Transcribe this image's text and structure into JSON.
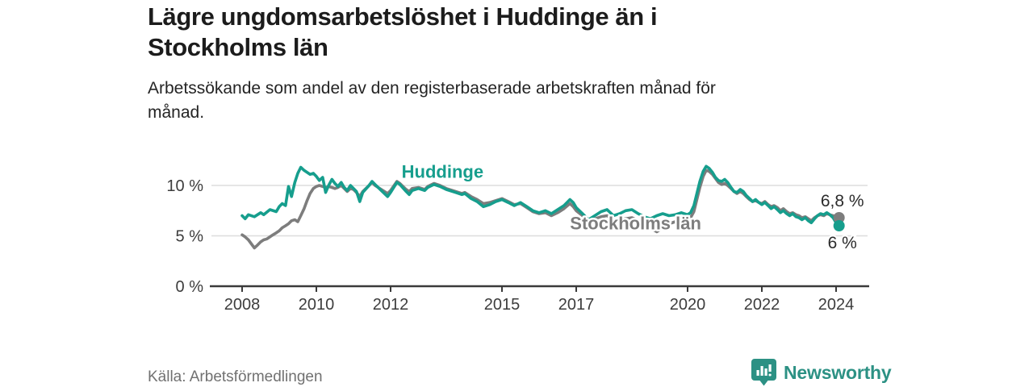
{
  "header": {
    "title_lines": [
      "Lägre ungdomsarbetslöshet i Huddinge än i",
      "Stockholms län"
    ],
    "subtitle_lines": [
      "Arbetssökande som andel av den registerbaserade arbetskraften månad för",
      "månad."
    ]
  },
  "footer": {
    "source": "Källa: Arbetsförmedlingen",
    "brand": "Newsworthy"
  },
  "colors": {
    "huddinge": "#169e8d",
    "stockholm": "#7d7d7d",
    "grid": "#dddddd",
    "axis": "#3a3a3a",
    "tick_label": "#3d3d3d",
    "end_label": "#2b2b2b",
    "brand": "#2c9184",
    "background": "#ffffff"
  },
  "chart_data": {
    "type": "line",
    "title": "Lägre ungdomsarbetslöshet i Huddinge än i Stockholms län",
    "xlabel": "",
    "ylabel": "Arbetssökande som andel av den registerbaserade arbetskraften",
    "x_ticks": [
      2008,
      2010,
      2012,
      2015,
      2017,
      2020,
      2022,
      2024
    ],
    "y_ticks": [
      {
        "value": 0,
        "label": "0 %"
      },
      {
        "value": 5,
        "label": "5 %"
      },
      {
        "value": 10,
        "label": "10 %"
      }
    ],
    "xlim": [
      2007.1,
      2024.9
    ],
    "ylim": [
      0,
      14
    ],
    "grid": "horizontal",
    "legend_position": "inline-labels",
    "series": [
      {
        "name": "Stockholms län",
        "color": "#7d7d7d",
        "end_label": "6,8 %",
        "end_value": 6.8,
        "label_anchor": {
          "year": 2018.6,
          "pct": 5.65
        },
        "points": [
          [
            2008.0,
            5.1
          ],
          [
            2008.08,
            4.9
          ],
          [
            2008.17,
            4.6
          ],
          [
            2008.25,
            4.2
          ],
          [
            2008.33,
            3.8
          ],
          [
            2008.42,
            4.1
          ],
          [
            2008.5,
            4.4
          ],
          [
            2008.58,
            4.6
          ],
          [
            2008.67,
            4.7
          ],
          [
            2008.75,
            4.9
          ],
          [
            2008.83,
            5.1
          ],
          [
            2008.92,
            5.3
          ],
          [
            2009.0,
            5.5
          ],
          [
            2009.08,
            5.8
          ],
          [
            2009.17,
            6.0
          ],
          [
            2009.25,
            6.2
          ],
          [
            2009.33,
            6.5
          ],
          [
            2009.42,
            6.6
          ],
          [
            2009.5,
            6.4
          ],
          [
            2009.58,
            7.0
          ],
          [
            2009.67,
            7.7
          ],
          [
            2009.75,
            8.5
          ],
          [
            2009.83,
            9.2
          ],
          [
            2009.92,
            9.7
          ],
          [
            2010.0,
            9.9
          ],
          [
            2010.08,
            10.0
          ],
          [
            2010.17,
            9.9
          ],
          [
            2010.25,
            9.8
          ],
          [
            2010.33,
            9.9
          ],
          [
            2010.42,
            9.8
          ],
          [
            2010.5,
            9.7
          ],
          [
            2010.58,
            9.8
          ],
          [
            2010.67,
            10.0
          ],
          [
            2010.75,
            9.7
          ],
          [
            2010.83,
            9.4
          ],
          [
            2010.92,
            9.7
          ],
          [
            2011.0,
            9.6
          ],
          [
            2011.08,
            9.3
          ],
          [
            2011.17,
            8.9
          ],
          [
            2011.25,
            9.4
          ],
          [
            2011.42,
            10.0
          ],
          [
            2011.5,
            10.3
          ],
          [
            2011.58,
            10.0
          ],
          [
            2011.75,
            9.6
          ],
          [
            2011.92,
            9.2
          ],
          [
            2012.0,
            9.5
          ],
          [
            2012.17,
            10.4
          ],
          [
            2012.25,
            10.2
          ],
          [
            2012.42,
            9.6
          ],
          [
            2012.5,
            9.4
          ],
          [
            2012.58,
            9.7
          ],
          [
            2012.75,
            9.8
          ],
          [
            2012.92,
            9.6
          ],
          [
            2013.0,
            9.9
          ],
          [
            2013.17,
            10.2
          ],
          [
            2013.33,
            10.0
          ],
          [
            2013.5,
            9.7
          ],
          [
            2013.75,
            9.4
          ],
          [
            2013.92,
            9.2
          ],
          [
            2014.0,
            9.3
          ],
          [
            2014.17,
            8.9
          ],
          [
            2014.33,
            8.6
          ],
          [
            2014.5,
            8.2
          ],
          [
            2014.67,
            8.3
          ],
          [
            2014.83,
            8.5
          ],
          [
            2015.0,
            8.7
          ],
          [
            2015.17,
            8.4
          ],
          [
            2015.33,
            8.1
          ],
          [
            2015.5,
            8.2
          ],
          [
            2015.67,
            7.8
          ],
          [
            2015.83,
            7.4
          ],
          [
            2016.0,
            7.2
          ],
          [
            2016.17,
            7.3
          ],
          [
            2016.33,
            7.0
          ],
          [
            2016.5,
            7.3
          ],
          [
            2016.67,
            7.7
          ],
          [
            2016.83,
            8.2
          ],
          [
            2016.92,
            7.9
          ],
          [
            2017.0,
            7.5
          ],
          [
            2017.17,
            7.0
          ],
          [
            2017.33,
            6.5
          ],
          [
            2017.5,
            6.7
          ],
          [
            2017.67,
            6.9
          ],
          [
            2017.83,
            7.0
          ],
          [
            2017.92,
            6.8
          ],
          [
            2018.0,
            6.5
          ],
          [
            2018.17,
            6.6
          ],
          [
            2018.33,
            6.7
          ],
          [
            2018.5,
            6.8
          ],
          [
            2018.67,
            6.5
          ],
          [
            2018.83,
            6.2
          ],
          [
            2019.0,
            5.9
          ],
          [
            2019.08,
            5.6
          ],
          [
            2019.17,
            5.4
          ],
          [
            2019.25,
            5.6
          ],
          [
            2019.33,
            5.9
          ],
          [
            2019.5,
            6.2
          ],
          [
            2019.67,
            6.4
          ],
          [
            2019.83,
            6.6
          ],
          [
            2020.0,
            6.6
          ],
          [
            2020.08,
            6.8
          ],
          [
            2020.17,
            7.4
          ],
          [
            2020.25,
            8.6
          ],
          [
            2020.33,
            9.8
          ],
          [
            2020.42,
            10.9
          ],
          [
            2020.5,
            11.5
          ],
          [
            2020.58,
            11.4
          ],
          [
            2020.67,
            11.1
          ],
          [
            2020.75,
            10.7
          ],
          [
            2020.83,
            10.3
          ],
          [
            2020.92,
            10.1
          ],
          [
            2021.0,
            10.2
          ],
          [
            2021.08,
            10.0
          ],
          [
            2021.17,
            9.7
          ],
          [
            2021.25,
            9.4
          ],
          [
            2021.33,
            9.2
          ],
          [
            2021.42,
            9.4
          ],
          [
            2021.5,
            9.2
          ],
          [
            2021.58,
            8.9
          ],
          [
            2021.67,
            8.6
          ],
          [
            2021.75,
            8.4
          ],
          [
            2021.83,
            8.5
          ],
          [
            2021.92,
            8.3
          ],
          [
            2022.0,
            8.2
          ],
          [
            2022.08,
            8.4
          ],
          [
            2022.17,
            8.1
          ],
          [
            2022.25,
            7.9
          ],
          [
            2022.33,
            8.0
          ],
          [
            2022.42,
            7.8
          ],
          [
            2022.5,
            7.5
          ],
          [
            2022.58,
            7.7
          ],
          [
            2022.67,
            7.4
          ],
          [
            2022.75,
            7.2
          ],
          [
            2022.83,
            7.3
          ],
          [
            2022.92,
            7.1
          ],
          [
            2023.0,
            7.0
          ],
          [
            2023.08,
            6.8
          ],
          [
            2023.17,
            6.9
          ],
          [
            2023.25,
            6.7
          ],
          [
            2023.33,
            6.5
          ],
          [
            2023.42,
            6.8
          ],
          [
            2023.5,
            7.0
          ],
          [
            2023.58,
            7.1
          ],
          [
            2023.67,
            7.0
          ],
          [
            2023.75,
            7.2
          ],
          [
            2023.83,
            7.1
          ],
          [
            2023.92,
            7.0
          ],
          [
            2024.0,
            6.9
          ],
          [
            2024.08,
            6.8
          ]
        ]
      },
      {
        "name": "Huddinge",
        "color": "#169e8d",
        "end_label": "6 %",
        "end_value": 6.0,
        "label_anchor": {
          "year": 2013.4,
          "pct": 10.75
        },
        "points": [
          [
            2008.0,
            7.0
          ],
          [
            2008.08,
            6.7
          ],
          [
            2008.17,
            7.1
          ],
          [
            2008.33,
            6.9
          ],
          [
            2008.5,
            7.3
          ],
          [
            2008.58,
            7.1
          ],
          [
            2008.75,
            7.6
          ],
          [
            2008.92,
            7.4
          ],
          [
            2009.0,
            7.9
          ],
          [
            2009.08,
            8.2
          ],
          [
            2009.17,
            8.0
          ],
          [
            2009.25,
            9.9
          ],
          [
            2009.33,
            8.9
          ],
          [
            2009.42,
            10.3
          ],
          [
            2009.5,
            11.2
          ],
          [
            2009.58,
            11.8
          ],
          [
            2009.67,
            11.5
          ],
          [
            2009.75,
            11.3
          ],
          [
            2009.83,
            11.1
          ],
          [
            2009.92,
            11.2
          ],
          [
            2010.0,
            10.9
          ],
          [
            2010.08,
            10.5
          ],
          [
            2010.17,
            10.8
          ],
          [
            2010.25,
            9.3
          ],
          [
            2010.33,
            10.0
          ],
          [
            2010.42,
            10.6
          ],
          [
            2010.5,
            10.2
          ],
          [
            2010.58,
            9.9
          ],
          [
            2010.67,
            10.3
          ],
          [
            2010.75,
            9.8
          ],
          [
            2010.83,
            9.5
          ],
          [
            2010.92,
            10.0
          ],
          [
            2011.0,
            9.7
          ],
          [
            2011.08,
            9.4
          ],
          [
            2011.17,
            8.4
          ],
          [
            2011.25,
            9.3
          ],
          [
            2011.42,
            10.0
          ],
          [
            2011.5,
            10.4
          ],
          [
            2011.58,
            10.1
          ],
          [
            2011.75,
            9.5
          ],
          [
            2011.92,
            8.9
          ],
          [
            2012.0,
            9.3
          ],
          [
            2012.17,
            10.3
          ],
          [
            2012.25,
            10.1
          ],
          [
            2012.42,
            9.4
          ],
          [
            2012.5,
            9.1
          ],
          [
            2012.58,
            9.5
          ],
          [
            2012.75,
            9.7
          ],
          [
            2012.92,
            9.5
          ],
          [
            2013.0,
            9.8
          ],
          [
            2013.17,
            10.1
          ],
          [
            2013.33,
            9.9
          ],
          [
            2013.5,
            9.6
          ],
          [
            2013.75,
            9.3
          ],
          [
            2013.92,
            9.1
          ],
          [
            2014.0,
            9.2
          ],
          [
            2014.17,
            8.7
          ],
          [
            2014.33,
            8.4
          ],
          [
            2014.5,
            7.9
          ],
          [
            2014.67,
            8.1
          ],
          [
            2014.83,
            8.4
          ],
          [
            2015.0,
            8.6
          ],
          [
            2015.17,
            8.3
          ],
          [
            2015.33,
            8.0
          ],
          [
            2015.5,
            8.3
          ],
          [
            2015.67,
            7.9
          ],
          [
            2015.83,
            7.5
          ],
          [
            2016.0,
            7.3
          ],
          [
            2016.17,
            7.5
          ],
          [
            2016.33,
            7.2
          ],
          [
            2016.5,
            7.6
          ],
          [
            2016.67,
            8.0
          ],
          [
            2016.83,
            8.6
          ],
          [
            2016.92,
            8.3
          ],
          [
            2017.0,
            7.8
          ],
          [
            2017.17,
            7.2
          ],
          [
            2017.33,
            6.6
          ],
          [
            2017.5,
            7.0
          ],
          [
            2017.67,
            7.4
          ],
          [
            2017.83,
            7.6
          ],
          [
            2017.92,
            7.3
          ],
          [
            2018.0,
            7.0
          ],
          [
            2018.17,
            7.2
          ],
          [
            2018.33,
            7.5
          ],
          [
            2018.5,
            7.6
          ],
          [
            2018.67,
            7.2
          ],
          [
            2018.83,
            6.9
          ],
          [
            2019.0,
            6.7
          ],
          [
            2019.17,
            7.0
          ],
          [
            2019.33,
            7.2
          ],
          [
            2019.5,
            7.0
          ],
          [
            2019.67,
            7.1
          ],
          [
            2019.83,
            7.3
          ],
          [
            2020.0,
            7.1
          ],
          [
            2020.08,
            7.3
          ],
          [
            2020.17,
            8.0
          ],
          [
            2020.25,
            9.2
          ],
          [
            2020.33,
            10.4
          ],
          [
            2020.42,
            11.4
          ],
          [
            2020.5,
            11.9
          ],
          [
            2020.58,
            11.7
          ],
          [
            2020.67,
            11.3
          ],
          [
            2020.75,
            10.8
          ],
          [
            2020.83,
            10.5
          ],
          [
            2020.92,
            10.4
          ],
          [
            2021.0,
            10.6
          ],
          [
            2021.08,
            10.3
          ],
          [
            2021.17,
            9.8
          ],
          [
            2021.25,
            9.4
          ],
          [
            2021.33,
            9.3
          ],
          [
            2021.42,
            9.6
          ],
          [
            2021.5,
            9.4
          ],
          [
            2021.58,
            9.0
          ],
          [
            2021.67,
            8.7
          ],
          [
            2021.75,
            8.4
          ],
          [
            2021.83,
            8.6
          ],
          [
            2021.92,
            8.3
          ],
          [
            2022.0,
            8.1
          ],
          [
            2022.08,
            8.3
          ],
          [
            2022.17,
            8.0
          ],
          [
            2022.25,
            7.7
          ],
          [
            2022.33,
            7.9
          ],
          [
            2022.42,
            7.6
          ],
          [
            2022.5,
            7.3
          ],
          [
            2022.58,
            7.5
          ],
          [
            2022.67,
            7.2
          ],
          [
            2022.75,
            7.0
          ],
          [
            2022.83,
            7.2
          ],
          [
            2022.92,
            6.9
          ],
          [
            2023.0,
            6.8
          ],
          [
            2023.08,
            6.6
          ],
          [
            2023.17,
            6.8
          ],
          [
            2023.25,
            6.5
          ],
          [
            2023.33,
            6.3
          ],
          [
            2023.42,
            6.7
          ],
          [
            2023.5,
            7.0
          ],
          [
            2023.58,
            7.2
          ],
          [
            2023.67,
            7.1
          ],
          [
            2023.75,
            7.3
          ],
          [
            2023.83,
            7.1
          ],
          [
            2023.92,
            6.8
          ],
          [
            2024.0,
            6.3
          ],
          [
            2024.08,
            6.0
          ]
        ]
      }
    ]
  }
}
